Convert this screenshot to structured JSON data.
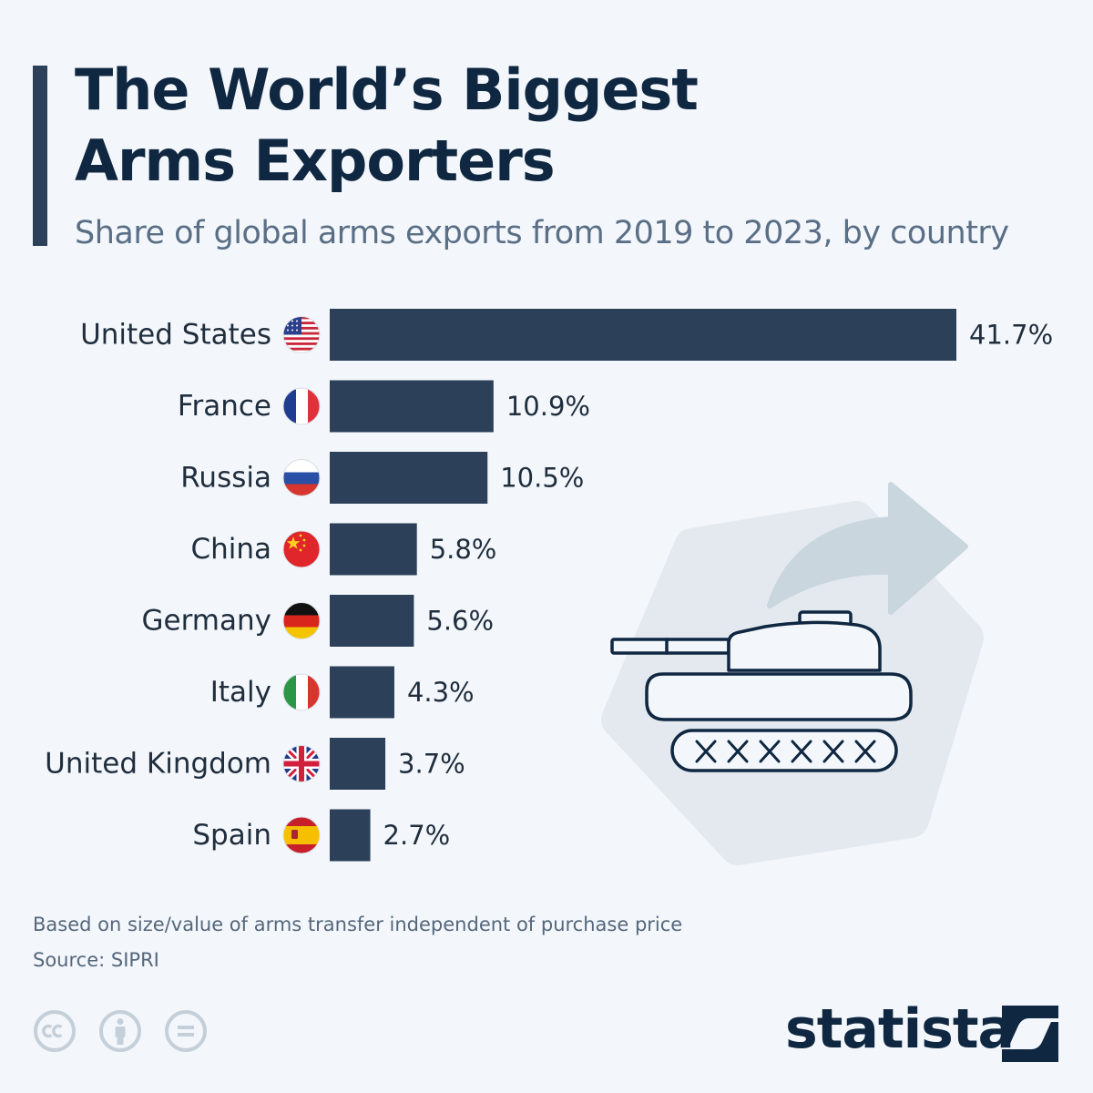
{
  "header": {
    "title_line1": "The World’s Biggest",
    "title_line2": "Arms Exporters",
    "subtitle": "Share of global arms exports from 2019 to 2023, by country"
  },
  "chart_data": {
    "type": "bar",
    "orientation": "horizontal",
    "categories": [
      "United States",
      "France",
      "Russia",
      "China",
      "Germany",
      "Italy",
      "United Kingdom",
      "Spain"
    ],
    "values": [
      41.7,
      10.9,
      10.5,
      5.8,
      5.6,
      4.3,
      3.7,
      2.7
    ],
    "value_labels": [
      "41.7%",
      "10.9%",
      "10.5%",
      "5.8%",
      "5.6%",
      "4.3%",
      "3.7%",
      "2.7%"
    ],
    "flags": [
      "us-flag-icon",
      "france-flag-icon",
      "russia-flag-icon",
      "china-flag-icon",
      "germany-flag-icon",
      "italy-flag-icon",
      "uk-flag-icon",
      "spain-flag-icon"
    ],
    "title": "The World’s Biggest Arms Exporters",
    "unit": "%",
    "grid": false,
    "legend": "none",
    "bar_color": "#2c4059",
    "illustration": "tank-export-icon"
  },
  "footer": {
    "note": "Based on size/value of arms transfer independent of purchase price",
    "source": "Source: SIPRI",
    "brand": "statista",
    "license_icons": [
      "cc-icon",
      "attribution-icon",
      "no-derivatives-icon"
    ]
  },
  "colors": {
    "background": "#f3f7fb",
    "bar": "#2c4059",
    "title": "#0f2741",
    "subtitle": "#5a6f86",
    "text": "#1f2d3d",
    "muted": "#55677c",
    "illustration_fill": "#e3e9ef",
    "arrow": "#c9d6de"
  }
}
